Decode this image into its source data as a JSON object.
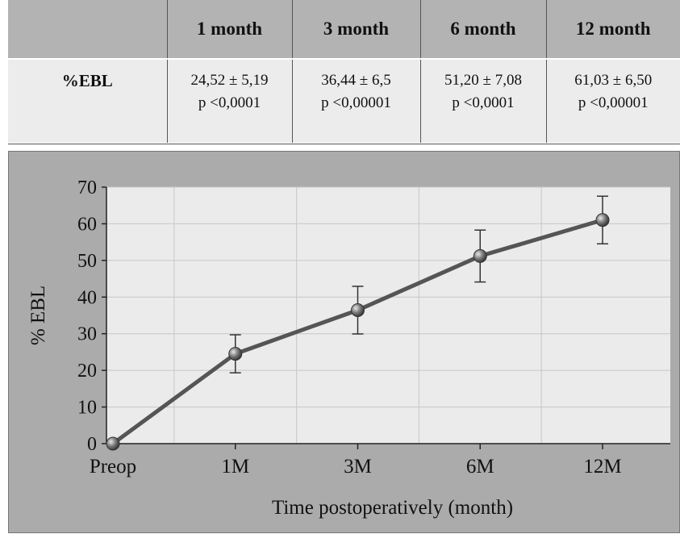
{
  "table": {
    "corner": "",
    "headers": [
      "1 month",
      "3 month",
      "6 month",
      "12 month"
    ],
    "row_label": "%EBL",
    "values": [
      "24,52 ± 5,19",
      "36,44 ± 6,5",
      "51,20 ± 7,08",
      "61,03 ± 6,50"
    ],
    "pvalues": [
      "p <0,0001",
      "p <0,00001",
      "p <0,0001",
      "p <0,00001"
    ]
  },
  "chart_data": {
    "type": "line",
    "xlabel": "Time postoperatively (month)",
    "ylabel": "% EBL",
    "categories": [
      "Preop",
      "1M",
      "3M",
      "6M",
      "12M"
    ],
    "ylim": [
      0,
      70
    ],
    "yticks": [
      0,
      10,
      20,
      30,
      40,
      50,
      60,
      70
    ],
    "grid": true,
    "series": [
      {
        "values": [
          0,
          24.52,
          36.44,
          51.2,
          61.03
        ],
        "errors": [
          0,
          5.19,
          6.5,
          7.08,
          6.5
        ]
      }
    ],
    "colors": {
      "line": "#555555",
      "marker": "#6e6e6e",
      "plot_bg": "#ebebeb",
      "frame_bg": "#ababab",
      "grid": "#c8c8c8"
    }
  }
}
